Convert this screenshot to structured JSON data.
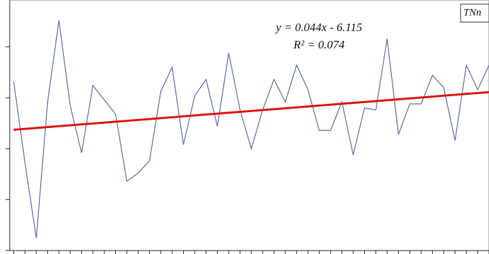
{
  "chart_data": {
    "type": "line",
    "legend_label": "TNn",
    "equation": "y = 0.044x - 6.115",
    "r_squared": "R² = 0.074",
    "x": [
      1,
      2,
      3,
      4,
      5,
      6,
      7,
      8,
      9,
      10,
      11,
      12,
      13,
      14,
      15,
      16,
      17,
      18,
      19,
      20,
      21,
      22,
      23,
      24,
      25,
      26,
      27,
      28,
      29,
      30,
      31,
      32,
      33,
      34,
      35,
      36,
      37,
      38,
      39,
      40,
      41,
      42,
      43
    ],
    "series": [
      {
        "name": "TNn",
        "color": "#5a6a9a",
        "values": [
          -3.7,
          -7.7,
          -11.4,
          -4.7,
          -0.7,
          -4.9,
          -7.2,
          -3.9,
          -4.6,
          -5.3,
          -8.6,
          -8.2,
          -7.6,
          -4.2,
          -3.0,
          -6.8,
          -4.4,
          -3.6,
          -5.9,
          -2.3,
          -5.1,
          -7.0,
          -5.1,
          -3.6,
          -4.7,
          -2.9,
          -4.1,
          -6.1,
          -6.1,
          -4.7,
          -7.3,
          -5.0,
          -5.1,
          -1.6,
          -6.3,
          -4.8,
          -4.8,
          -3.4,
          -4.0,
          -6.6,
          -2.9,
          -4.1,
          -2.9
        ]
      }
    ],
    "trendline": {
      "color": "#e01010",
      "x": [
        1,
        43
      ],
      "values": [
        -6.071,
        -4.223
      ]
    },
    "xlim": [
      0.65,
      43
    ],
    "xticks": [
      1,
      2,
      3,
      4,
      5,
      6,
      7,
      8,
      9,
      10,
      11,
      12,
      13,
      14,
      15,
      16,
      17,
      18,
      19,
      20,
      21,
      22,
      23,
      24,
      25,
      26,
      27,
      28,
      29,
      30,
      31,
      32,
      33,
      34,
      35,
      36,
      37,
      38,
      39,
      40,
      41,
      42,
      43
    ],
    "ylim": [
      -12,
      0.3
    ],
    "yticks": [
      -12,
      -9.5,
      -7,
      -4.5,
      -2
    ]
  }
}
